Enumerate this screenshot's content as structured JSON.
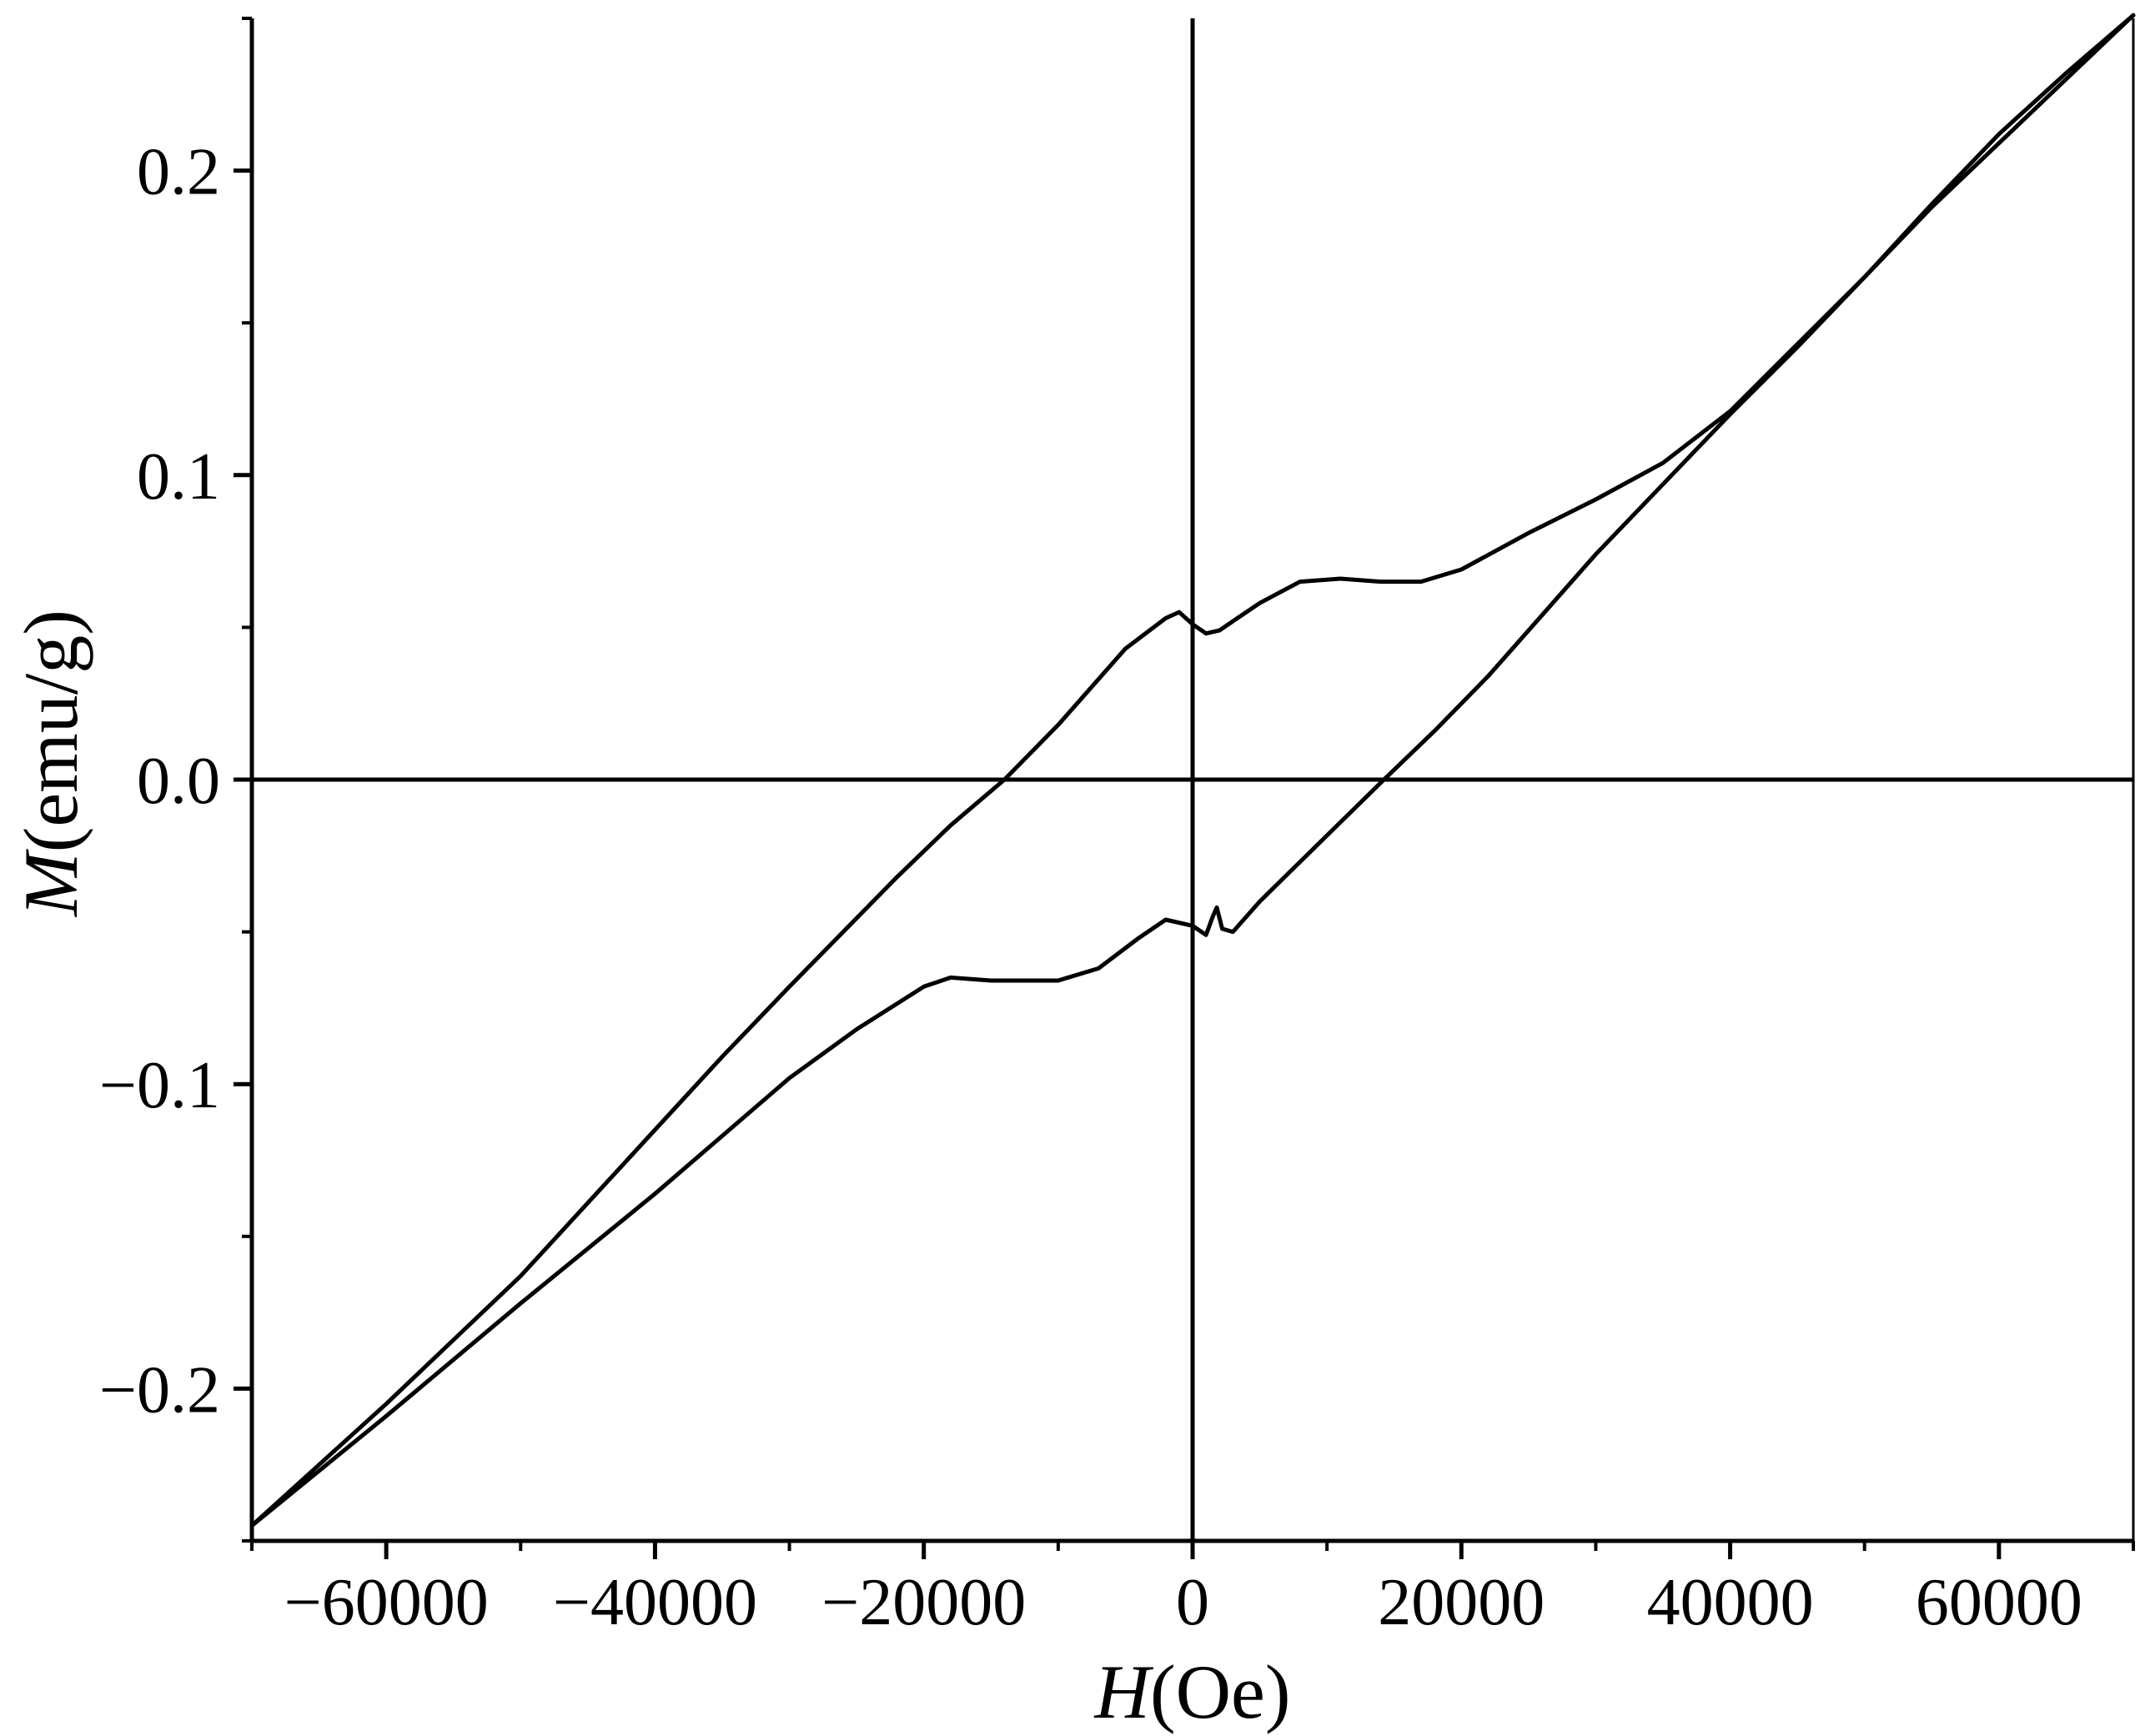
{
  "chart_data": {
    "type": "line",
    "title": "",
    "xlabel_italic": "H",
    "xlabel_unit": "(Oe)",
    "ylabel_italic": "M",
    "ylabel_unit": "(emu/g)",
    "xlim": [
      -70000,
      70000
    ],
    "ylim": [
      -0.25,
      0.25
    ],
    "x_ticks": [
      -60000,
      -40000,
      -20000,
      0,
      20000,
      40000,
      60000
    ],
    "x_tick_labels": [
      "−60000",
      "−40000",
      "−20000",
      "0",
      "20000",
      "40000",
      "60000"
    ],
    "x_minor_step": 10000,
    "y_ticks": [
      -0.2,
      -0.1,
      0.0,
      0.1,
      0.2
    ],
    "y_tick_labels": [
      "−0.2",
      "−0.1",
      "0.0",
      "0.1",
      "0.2"
    ],
    "y_minor_step": 0.05,
    "zero_lines": true,
    "grid": false,
    "line_color": "#000000",
    "series": [
      {
        "x": [
          -70000,
          -60000,
          -50000,
          -40000,
          -30000,
          -25000,
          -20000,
          -18000,
          -15000,
          -10000,
          -7000,
          -4000,
          -2000,
          0,
          1000,
          1500,
          1800,
          2200,
          3000,
          5000,
          8000,
          11000,
          14000,
          18000,
          22000,
          26000,
          30000,
          35000,
          40000,
          45000,
          50000,
          55000,
          60000,
          65000,
          70000
        ],
        "y": [
          -0.245,
          -0.209,
          -0.172,
          -0.136,
          -0.098,
          -0.082,
          -0.068,
          -0.065,
          -0.066,
          -0.066,
          -0.062,
          -0.052,
          -0.046,
          -0.048,
          -0.051,
          -0.045,
          -0.042,
          -0.049,
          -0.05,
          -0.04,
          -0.027,
          -0.014,
          -0.001,
          0.016,
          0.034,
          0.054,
          0.074,
          0.097,
          0.12,
          0.142,
          0.165,
          0.188,
          0.209,
          0.23,
          0.251
        ]
      },
      {
        "x": [
          70000,
          65000,
          60000,
          55000,
          50000,
          45000,
          40000,
          35000,
          30000,
          25000,
          20000,
          17000,
          14000,
          11000,
          8000,
          5000,
          3000,
          2000,
          1000,
          0,
          -1000,
          -2000,
          -5000,
          -10000,
          -14000,
          -18000,
          -22000,
          -26000,
          -30000,
          -35000,
          -40000,
          -45000,
          -50000,
          -55000,
          -60000,
          -65000,
          -70000
        ],
        "y": [
          0.251,
          0.232,
          0.212,
          0.189,
          0.165,
          0.143,
          0.121,
          0.104,
          0.092,
          0.081,
          0.069,
          0.065,
          0.065,
          0.066,
          0.065,
          0.058,
          0.052,
          0.049,
          0.048,
          0.051,
          0.055,
          0.053,
          0.043,
          0.018,
          0.0,
          -0.015,
          -0.032,
          -0.05,
          -0.068,
          -0.091,
          -0.115,
          -0.139,
          -0.163,
          -0.184,
          -0.205,
          -0.225,
          -0.245
        ]
      }
    ]
  }
}
